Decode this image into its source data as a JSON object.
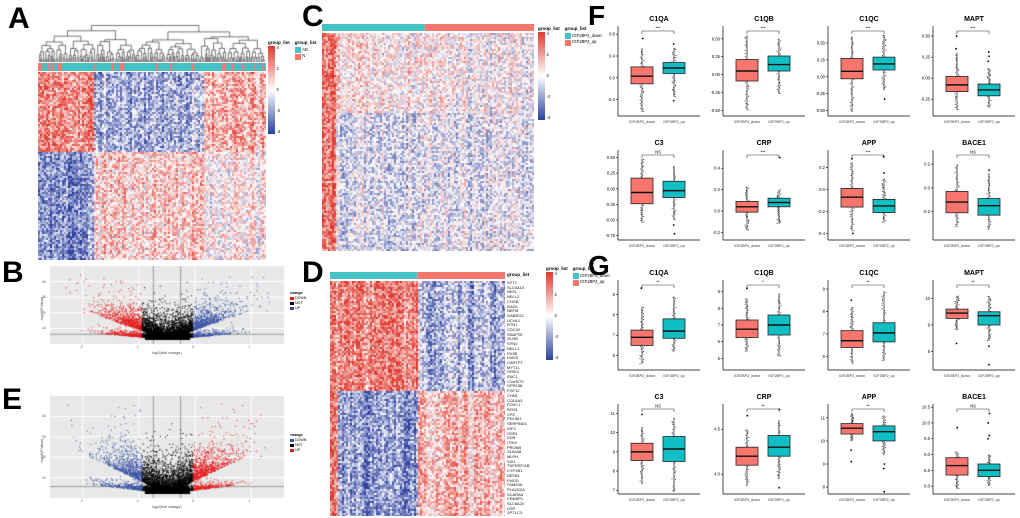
{
  "panels": {
    "A": {
      "label": "A"
    },
    "B": {
      "label": "B"
    },
    "C": {
      "label": "C"
    },
    "D": {
      "label": "D"
    },
    "E": {
      "label": "E"
    },
    "F": {
      "label": "F"
    },
    "G": {
      "label": "G"
    }
  },
  "palette": {
    "heat_pos": "#E0392E",
    "heat_neg": "#2B3F9E",
    "annot_teal": "#44C2C6",
    "annot_salmon": "#F8766D",
    "box_red": "#F8766D",
    "box_teal": "#0FBFC4",
    "volcano_red": "#E41A1C",
    "volcano_blue": "#3953A4",
    "panel_bg": "#E8E8E8"
  },
  "chart_data": [
    {
      "id": "A",
      "type": "heatmap",
      "has_dendrogram": true,
      "legend_scale_title": "group_list",
      "scale_ticks": [
        "4",
        "2",
        "0",
        "-2",
        "-4"
      ],
      "legend_group_title": "group_list",
      "groups": [
        {
          "label": "AD",
          "color": "#44C2C6"
        },
        {
          "label": "N",
          "color": "#F8766D"
        }
      ]
    },
    {
      "id": "B",
      "type": "scatter",
      "subtype": "volcano",
      "xlabel": "log2(fold change)",
      "ylabel": "-log10(P.Value)",
      "x_ticks": [
        "-2",
        "-1",
        "0",
        "1"
      ],
      "y_ticks": [
        "40",
        "30",
        "20",
        "10"
      ],
      "legend_title": "change",
      "legend_items": [
        {
          "label": "DOWN",
          "color": "#E41A1C"
        },
        {
          "label": "NOT",
          "color": "#000000"
        },
        {
          "label": "UP",
          "color": "#3953A4"
        }
      ],
      "left_color": "#E41A1C",
      "right_color": "#3953A4"
    },
    {
      "id": "C",
      "type": "heatmap",
      "has_dendrogram": false,
      "legend_scale_title": "group_list",
      "scale_ticks": [
        "4",
        "2",
        "0",
        "-2",
        "-4"
      ],
      "legend_group_title": "group_list",
      "groups": [
        {
          "label": "IGF2BP2_down",
          "color": "#44C2C6"
        },
        {
          "label": "IGF2BP2_up",
          "color": "#F8766D"
        }
      ]
    },
    {
      "id": "D",
      "type": "heatmap",
      "has_dendrogram": false,
      "annotation_header": "group_list",
      "legend_scale_title": "group_list",
      "scale_ticks": [
        "4",
        "2",
        "0",
        "-2",
        "-4"
      ],
      "legend_group_title": "group_list",
      "groups": [
        {
          "label": "IGF2BP2_down",
          "color": "#44C2C6"
        },
        {
          "label": "IGF2BP2_up",
          "color": "#F8766D"
        }
      ],
      "row_labels": [
        "SYT1",
        "SLC4A10",
        "NEFL",
        "NELL2",
        "CHGB",
        "GAD1",
        "NEFM",
        "GABRG2",
        "UCHL1",
        "RTN1",
        "CDC42",
        "SNAP25",
        "GLRB",
        "SYN2",
        "NELL1",
        "SV2B",
        "LMO3",
        "CARTPT",
        "MYT1L",
        "GRIK2",
        "ENC1",
        "C1orf173",
        "GPR158",
        "FGF12",
        "CHN1",
        "COL6A3",
        "FOXC1",
        "RGS1",
        "CPZ",
        "PDLIM1",
        "SERPIND1",
        "IGF2",
        "OSR1",
        "KDR",
        "ITIH2",
        "PROM5",
        "S100A8",
        "MLPH",
        "SIX1",
        "TNFRSF11B",
        "CYP1B1",
        "DEFB1",
        "FMOD",
        "FAM20A",
        "PLA2G2A",
        "SCARA5",
        "CRABP1",
        "SLC6A20",
        "DSP",
        "SPTLC3"
      ]
    },
    {
      "id": "E",
      "type": "scatter",
      "subtype": "volcano",
      "xlabel": "log2(fold change)",
      "ylabel": "-log10(P.Value)",
      "x_ticks": [
        "-2",
        "-1",
        "0",
        "1"
      ],
      "y_ticks": [
        "40",
        "30",
        "20",
        "10"
      ],
      "legend_title": "change",
      "legend_items": [
        {
          "label": "DOWN",
          "color": "#3953A4"
        },
        {
          "label": "NOT",
          "color": "#000000"
        },
        {
          "label": "UP",
          "color": "#E41A1C"
        }
      ],
      "left_color": "#3953A4",
      "right_color": "#E41A1C"
    },
    {
      "id": "F",
      "type": "box",
      "categories": [
        "IGF2BP2_down",
        "IGF2BP2_up"
      ],
      "plots": [
        {
          "title": "C1QA",
          "sig": "***",
          "ylim": [
            -0.7,
            0.95
          ],
          "yticks": [
            "0.8",
            "0.4",
            "0.0",
            "-0.4"
          ],
          "down": {
            "lo": -0.63,
            "q1": -0.11,
            "med": 0.03,
            "q3": 0.2,
            "hi": 0.55,
            "outliers": [
              0.72
            ]
          },
          "up": {
            "lo": -0.35,
            "q1": 0.08,
            "med": 0.18,
            "q3": 0.28,
            "hi": 0.55,
            "outliers": [
              -0.42,
              0.62
            ]
          }
        },
        {
          "title": "C1QB",
          "sig": "***",
          "ylim": [
            -0.58,
            0.68
          ],
          "yticks": [
            "0.50",
            "0.25",
            "0.00",
            "-0.25",
            "-0.50"
          ],
          "down": {
            "lo": -0.5,
            "q1": -0.09,
            "med": 0.05,
            "q3": 0.21,
            "hi": 0.55,
            "outliers": []
          },
          "up": {
            "lo": -0.27,
            "q1": 0.05,
            "med": 0.14,
            "q3": 0.26,
            "hi": 0.5,
            "outliers": []
          }
        },
        {
          "title": "C1QC",
          "sig": "***",
          "ylim": [
            -0.58,
            0.75
          ],
          "yticks": [
            "0.50",
            "0.25",
            "0.00",
            "-0.25",
            "-0.50"
          ],
          "down": {
            "lo": -0.52,
            "q1": -0.03,
            "med": 0.08,
            "q3": 0.27,
            "hi": 0.6,
            "outliers": []
          },
          "up": {
            "lo": -0.2,
            "q1": 0.1,
            "med": 0.19,
            "q3": 0.29,
            "hi": 0.62,
            "outliers": [
              -0.33
            ]
          }
        },
        {
          "title": "MAPT",
          "sig": "***",
          "ylim": [
            -0.45,
            0.62
          ],
          "yticks": [
            "0.50",
            "0.25",
            "0.00",
            "-0.25"
          ],
          "down": {
            "lo": -0.38,
            "q1": -0.16,
            "med": -0.08,
            "q3": 0.02,
            "hi": 0.3,
            "outliers": [
              0.35,
              0.5
            ]
          },
          "up": {
            "lo": -0.35,
            "q1": -0.21,
            "med": -0.14,
            "q3": -0.07,
            "hi": 0.12,
            "outliers": [
              0.2,
              0.26,
              0.31
            ]
          }
        },
        {
          "title": "C3",
          "sig": "NS",
          "ylim": [
            -0.82,
            0.62
          ],
          "yticks": [
            "0.50",
            "0.25",
            "0.00",
            "-0.25",
            "-0.50",
            "-0.75"
          ],
          "down": {
            "lo": -0.55,
            "q1": -0.24,
            "med": -0.06,
            "q3": 0.17,
            "hi": 0.48,
            "outliers": []
          },
          "up": {
            "lo": -0.5,
            "q1": -0.14,
            "med": -0.03,
            "q3": 0.12,
            "hi": 0.37,
            "outliers": [
              -0.58,
              -0.72
            ]
          }
        },
        {
          "title": "CRP",
          "sig": "***",
          "ylim": [
            -0.27,
            0.57
          ],
          "yticks": [
            "0.4",
            "0.2",
            "0.0",
            "-0.2"
          ],
          "down": {
            "lo": -0.18,
            "q1": -0.01,
            "med": 0.04,
            "q3": 0.09,
            "hi": 0.23,
            "outliers": []
          },
          "up": {
            "lo": -0.12,
            "q1": 0.04,
            "med": 0.08,
            "q3": 0.12,
            "hi": 0.2,
            "outliers": [
              0.5
            ]
          }
        },
        {
          "title": "APP",
          "sig": "***",
          "ylim": [
            -0.46,
            0.36
          ],
          "yticks": [
            "0.2",
            "0.0",
            "-0.2",
            "-0.4"
          ],
          "down": {
            "lo": -0.38,
            "q1": -0.16,
            "med": -0.07,
            "q3": 0.01,
            "hi": 0.25,
            "outliers": [
              0.28,
              -0.4
            ]
          },
          "up": {
            "lo": -0.3,
            "q1": -0.21,
            "med": -0.15,
            "q3": -0.09,
            "hi": 0.1,
            "outliers": [
              0.15,
              0.3
            ]
          }
        },
        {
          "title": "BACE1",
          "sig": "NS",
          "ylim": [
            -0.44,
            0.32
          ],
          "yticks": [
            "0.2",
            "0.0",
            "-0.2"
          ],
          "down": {
            "lo": -0.33,
            "q1": -0.21,
            "med": -0.12,
            "q3": -0.03,
            "hi": 0.2,
            "outliers": []
          },
          "up": {
            "lo": -0.35,
            "q1": -0.23,
            "med": -0.15,
            "q3": -0.09,
            "hi": 0.12,
            "outliers": [
              0.15
            ]
          }
        }
      ]
    },
    {
      "id": "G",
      "type": "box",
      "categories": [
        "IGF2BP2_down",
        "IGF2BP2_up"
      ],
      "plots": [
        {
          "title": "C1QA",
          "sig": "**",
          "ylim": [
            5.3,
            9.7
          ],
          "yticks": [
            "9",
            "8",
            "7",
            "6"
          ],
          "down": {
            "lo": 5.6,
            "q1": 6.5,
            "med": 6.9,
            "q3": 7.25,
            "hi": 8.4,
            "outliers": [
              9.3
            ]
          },
          "up": {
            "lo": 6.2,
            "q1": 6.85,
            "med": 7.2,
            "q3": 7.8,
            "hi": 8.9,
            "outliers": []
          }
        },
        {
          "title": "C1QB",
          "sig": "*",
          "ylim": [
            4.3,
            9.7
          ],
          "yticks": [
            "9",
            "8",
            "7",
            "6",
            "5"
          ],
          "down": {
            "lo": 5.4,
            "q1": 6.25,
            "med": 6.75,
            "q3": 7.3,
            "hi": 8.6,
            "outliers": [
              9.2
            ]
          },
          "up": {
            "lo": 5.1,
            "q1": 6.4,
            "med": 7.0,
            "q3": 7.6,
            "hi": 8.9,
            "outliers": []
          }
        },
        {
          "title": "C1QC",
          "sig": "**",
          "ylim": [
            5.4,
            9.4
          ],
          "yticks": [
            "9",
            "8",
            "7",
            "6"
          ],
          "down": {
            "lo": 5.7,
            "q1": 6.4,
            "med": 6.7,
            "q3": 7.15,
            "hi": 8.2,
            "outliers": [
              8.5
            ]
          },
          "up": {
            "lo": 5.8,
            "q1": 6.65,
            "med": 7.05,
            "q3": 7.5,
            "hi": 8.9,
            "outliers": []
          }
        },
        {
          "title": "MAPT",
          "sig": "**",
          "ylim": [
            7.3,
            10.7
          ],
          "yticks": [
            "10",
            "9",
            "8"
          ],
          "down": {
            "lo": 8.8,
            "q1": 9.25,
            "med": 9.45,
            "q3": 9.6,
            "hi": 10.1,
            "outliers": [
              8.3
            ]
          },
          "up": {
            "lo": 8.4,
            "q1": 9.0,
            "med": 9.35,
            "q3": 9.5,
            "hi": 10.1,
            "outliers": [
              8.2,
              7.5
            ]
          }
        },
        {
          "title": "C3",
          "sig": "NS",
          "ylim": [
            6.8,
            11.5
          ],
          "yticks": [
            "11",
            "10",
            "9",
            "8",
            "7"
          ],
          "down": {
            "lo": 7.3,
            "q1": 8.55,
            "med": 9.0,
            "q3": 9.45,
            "hi": 10.3,
            "outliers": [
              10.95
            ]
          },
          "up": {
            "lo": 6.9,
            "q1": 8.5,
            "med": 9.15,
            "q3": 9.8,
            "hi": 10.8,
            "outliers": []
          }
        },
        {
          "title": "CRP",
          "sig": "**",
          "ylim": [
            3.78,
            4.78
          ],
          "yticks": [
            "4.5",
            "4.0"
          ],
          "down": {
            "lo": 3.87,
            "q1": 4.1,
            "med": 4.2,
            "q3": 4.3,
            "hi": 4.5,
            "outliers": [
              4.65
            ]
          },
          "up": {
            "lo": 3.95,
            "q1": 4.2,
            "med": 4.3,
            "q3": 4.43,
            "hi": 4.6,
            "outliers": [
              4.72,
              3.85
            ]
          }
        },
        {
          "title": "APP",
          "sig": "**",
          "ylim": [
            7.7,
            11.6
          ],
          "yticks": [
            "11",
            "10",
            "9",
            "8"
          ],
          "down": {
            "lo": 10.0,
            "q1": 10.3,
            "med": 10.55,
            "q3": 10.75,
            "hi": 11.2,
            "outliers": [
              9.6,
              9.1
            ]
          },
          "up": {
            "lo": 9.4,
            "q1": 10.0,
            "med": 10.4,
            "q3": 10.65,
            "hi": 11.1,
            "outliers": [
              9.0,
              8.8,
              7.8
            ]
          }
        },
        {
          "title": "BACE1",
          "sig": "NS",
          "ylim": [
            7.75,
            10.6
          ],
          "yticks": [
            "10.5",
            "10.0",
            "9.5",
            "9.0",
            "8.5",
            "8.0"
          ],
          "down": {
            "lo": 7.9,
            "q1": 8.35,
            "med": 8.65,
            "q3": 8.9,
            "hi": 9.1,
            "outliers": [
              9.85
            ]
          },
          "up": {
            "lo": 8.0,
            "q1": 8.3,
            "med": 8.5,
            "q3": 8.7,
            "hi": 9.0,
            "outliers": [
              9.5,
              9.6,
              10.0,
              10.3
            ]
          }
        }
      ]
    }
  ]
}
